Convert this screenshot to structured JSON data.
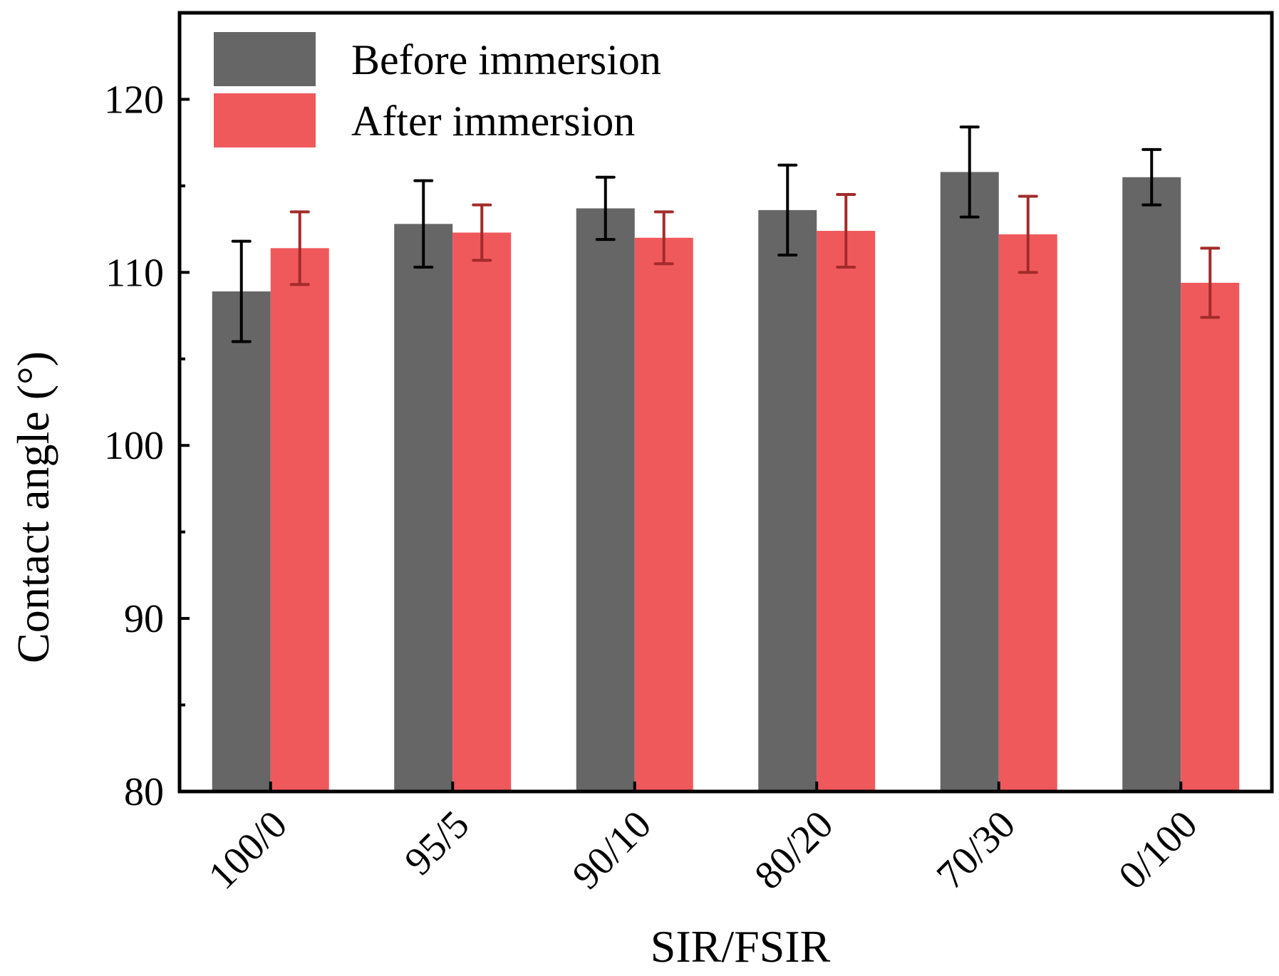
{
  "chart_data": {
    "type": "bar",
    "title": "",
    "xlabel": "SIR/FSIR",
    "ylabel": "Contact angle (°)",
    "ylim": [
      80,
      125
    ],
    "yticks": [
      80,
      90,
      100,
      110,
      120
    ],
    "categories": [
      "100/0",
      "95/5",
      "90/10",
      "80/20",
      "70/30",
      "0/100"
    ],
    "series": [
      {
        "name": "Before immersion",
        "color": "#666666",
        "error_color": "#000000",
        "values": [
          108.9,
          112.8,
          113.7,
          113.6,
          115.8,
          115.5
        ],
        "errors": [
          2.9,
          2.5,
          1.8,
          2.6,
          2.6,
          1.6
        ]
      },
      {
        "name": "After immersion",
        "color": "#f0595c",
        "error_color": "#a32a2a",
        "values": [
          111.4,
          112.3,
          112.0,
          112.4,
          112.2,
          109.4
        ],
        "errors": [
          2.1,
          1.6,
          1.5,
          2.1,
          2.2,
          2.0
        ]
      }
    ],
    "legend_position": "top-left",
    "grid": false
  }
}
